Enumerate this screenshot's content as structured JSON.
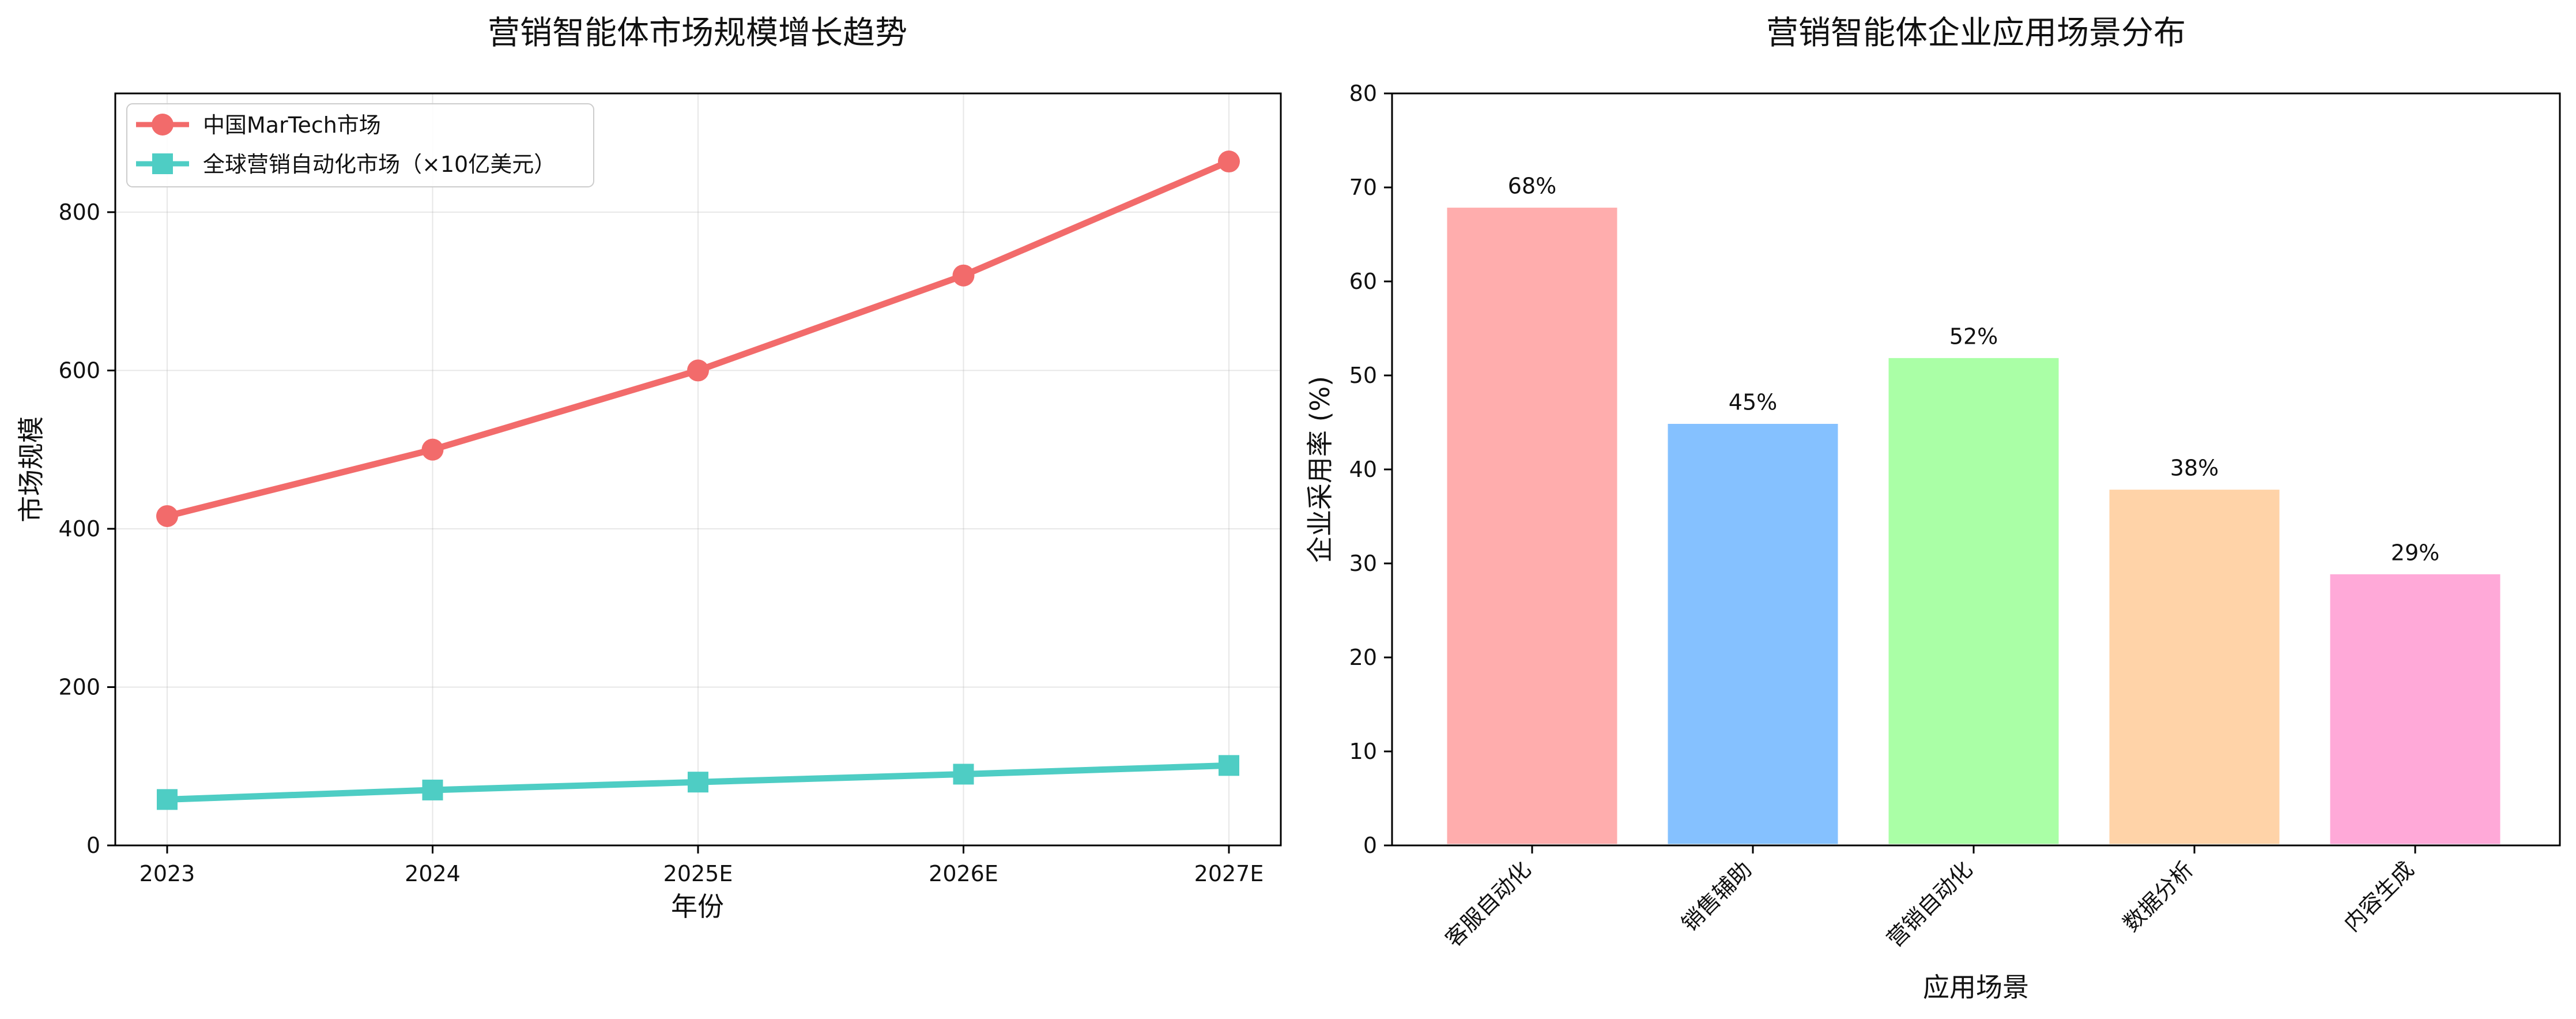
{
  "chart_data": [
    {
      "type": "line",
      "title": "营销智能体市场规模增长趋势",
      "xlabel": "年份",
      "ylabel": "市场规模",
      "categories": [
        "2023",
        "2024",
        "2025E",
        "2026E",
        "2027E"
      ],
      "ylim": [
        0,
        950
      ],
      "yticks": [
        0,
        200,
        400,
        600,
        800
      ],
      "grid": true,
      "legend_position": "upper-left",
      "series": [
        {
          "name": "中国MarTech市场",
          "values": [
            416,
            500,
            600,
            720,
            864
          ],
          "color": "#f26b6b",
          "marker": "circle"
        },
        {
          "name": "全球营销自动化市场（×10亿美元）",
          "values": [
            58,
            70,
            80,
            90,
            101
          ],
          "color": "#4ecdc4",
          "marker": "square"
        }
      ]
    },
    {
      "type": "bar",
      "title": "营销智能体企业应用场景分布",
      "xlabel": "应用场景",
      "ylabel": "企业采用率 (%)",
      "categories": [
        "客服自动化",
        "销售辅助",
        "营销自动化",
        "数据分析",
        "内容生成"
      ],
      "values": [
        68,
        45,
        52,
        38,
        29
      ],
      "data_labels": [
        "68%",
        "45%",
        "52%",
        "38%",
        "29%"
      ],
      "colors": [
        "#ffadad",
        "#85c1ff",
        "#aaffa6",
        "#ffd3a8",
        "#ffa9d8"
      ],
      "ylim": [
        0,
        80
      ],
      "yticks": [
        0,
        10,
        20,
        30,
        40,
        50,
        60,
        70,
        80
      ],
      "grid": false
    }
  ]
}
